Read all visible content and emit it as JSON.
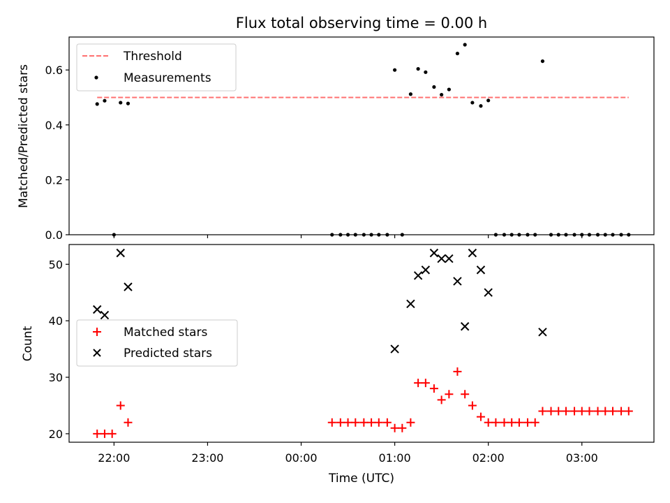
{
  "chart_data": {
    "title": "Flux total observing time = 0.00 h",
    "xlabel": "Time (UTC)",
    "x_tick_labels": [
      "22:00",
      "23:00",
      "00:00",
      "01:00",
      "02:00",
      "03:00"
    ],
    "x_tick_hours": [
      22,
      23,
      24,
      25,
      26,
      27
    ],
    "xlim_hours": [
      21.52,
      27.77
    ],
    "panels": [
      {
        "type": "scatter",
        "ylabel": "Matched/Predicted stars",
        "ylim": [
          0,
          0.72
        ],
        "y_ticks": [
          0.0,
          0.2,
          0.4,
          0.6
        ],
        "y_tick_labels": [
          "0.0",
          "0.2",
          "0.4",
          "0.6"
        ],
        "legend_position": "upper left",
        "threshold": {
          "name": "Threshold",
          "value": 0.5,
          "x_start": 21.82,
          "x_end": 27.5,
          "color": "#ff7070"
        },
        "series": [
          {
            "name": "Measurements",
            "color": "#000000",
            "marker": "dot",
            "x": [
              21.82,
              21.9,
              22.0,
              22.07,
              22.15,
              24.33,
              24.42,
              24.5,
              24.58,
              24.67,
              24.75,
              24.83,
              24.92,
              25.0,
              25.08,
              25.17,
              25.25,
              25.33,
              25.42,
              25.5,
              25.58,
              25.67,
              25.75,
              25.83,
              25.92,
              26.0,
              26.08,
              26.17,
              26.25,
              26.33,
              26.42,
              26.5,
              26.58,
              26.67,
              26.75,
              26.83,
              26.92,
              27.0,
              27.08,
              27.17,
              27.25,
              27.33,
              27.42,
              27.5
            ],
            "y": [
              0.476,
              0.488,
              0.0,
              0.481,
              0.478,
              0.0,
              0.0,
              0.0,
              0.0,
              0.0,
              0.0,
              0.0,
              0.0,
              0.6,
              0.0,
              0.512,
              0.604,
              0.592,
              0.538,
              0.51,
              0.529,
              0.66,
              0.692,
              0.481,
              0.469,
              0.489,
              0.0,
              0.0,
              0.0,
              0.0,
              0.0,
              0.0,
              0.632,
              0.0,
              0.0,
              0.0,
              0.0,
              0.0,
              0.0,
              0.0,
              0.0,
              0.0,
              0.0,
              0.0
            ]
          }
        ]
      },
      {
        "type": "scatter",
        "ylabel": "Count",
        "ylim": [
          18.5,
          53.5
        ],
        "y_ticks": [
          20,
          30,
          40,
          50
        ],
        "y_tick_labels": [
          "20",
          "30",
          "40",
          "50"
        ],
        "legend_position": "center left",
        "series": [
          {
            "name": "Matched stars",
            "color": "#ff0000",
            "marker": "plus",
            "x": [
              21.82,
              21.9,
              21.98,
              22.07,
              22.15,
              24.33,
              24.42,
              24.5,
              24.58,
              24.67,
              24.75,
              24.83,
              24.92,
              25.0,
              25.08,
              25.17,
              25.25,
              25.33,
              25.42,
              25.5,
              25.58,
              25.67,
              25.75,
              25.83,
              25.92,
              26.0,
              26.08,
              26.17,
              26.25,
              26.33,
              26.42,
              26.5,
              26.58,
              26.67,
              26.75,
              26.83,
              26.92,
              27.0,
              27.08,
              27.17,
              27.25,
              27.33,
              27.42,
              27.5
            ],
            "y": [
              20,
              20,
              20,
              25,
              22,
              22,
              22,
              22,
              22,
              22,
              22,
              22,
              22,
              21,
              21,
              22,
              29,
              29,
              28,
              26,
              27,
              31,
              27,
              25,
              23,
              22,
              22,
              22,
              22,
              22,
              22,
              22,
              24,
              24,
              24,
              24,
              24,
              24,
              24,
              24,
              24,
              24,
              24,
              24
            ]
          },
          {
            "name": "Predicted stars",
            "color": "#000000",
            "marker": "x",
            "x": [
              21.82,
              21.9,
              22.07,
              22.15,
              25.0,
              25.17,
              25.25,
              25.33,
              25.42,
              25.5,
              25.58,
              25.67,
              25.75,
              25.83,
              25.92,
              26.0,
              26.58
            ],
            "y": [
              42,
              41,
              52,
              46,
              35,
              43,
              48,
              49,
              52,
              51,
              51,
              47,
              39,
              52,
              49,
              45,
              38
            ]
          }
        ]
      }
    ]
  }
}
